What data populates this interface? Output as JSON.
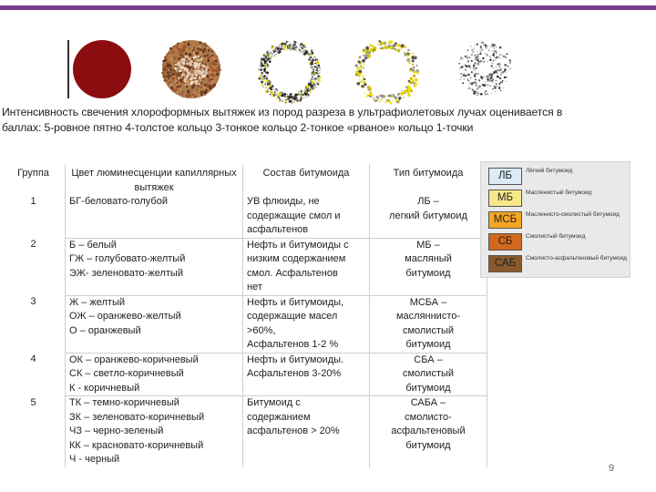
{
  "caption": {
    "line1": "Интенсивность свечения хлороформных вытяжек из пород разреза в ультрафиолетовых лучах оценивается в",
    "line2": "баллах: 5-ровное пятно   4-толстое кольцо   3-тонкое кольцо   2-тонкое «рваное» кольцо 1-точки"
  },
  "table": {
    "headers": [
      "Группа",
      "Цвет люминесценции капиллярных вытяжек",
      "Состав битумоида",
      "Тип битумоида"
    ],
    "rows": [
      {
        "group": "1",
        "color": "БГ-беловато-голубой",
        "composition": "УВ флюиды, не\nсодержащие смол и\nасфальтенов",
        "type": "ЛБ –\nлегкий битумоид"
      },
      {
        "group": "2",
        "color": "Б – белый\nГЖ – голубовато-желтый\nЭЖ- зеленовато-желтый",
        "composition": "Нефть и битумоиды с\nнизким содержанием\nсмол. Асфальтенов\nнет",
        "type": "МБ –\nмасляный\nбитумоид"
      },
      {
        "group": "3",
        "color": "Ж – желтый\nОЖ – оранжево-желтый\nО – оранжевый",
        "composition": "Нефть и битумоиды,\nсодержащие масел\n>60%,\nАсфальтенов 1-2 %",
        "type": "МСБА –\nмасляннисто-\nсмолистый\nбитумоид"
      },
      {
        "group": "4",
        "color": "ОК – оранжево-коричневый\nСК – светло-коричневый\nК - коричневый",
        "composition": "Нефть и битумоиды.\nАсфальтенов 3-20%",
        "type": "СБА –\nсмолистый\nбитумоид"
      },
      {
        "group": "5",
        "color": "ТК – темно-коричневый\nЗК – зеленовато-коричневый\nЧЗ – черно-зеленый\nКК – красновато-коричневый\nЧ - черный",
        "composition": "Битумоид с\nсодержанием\nасфальтенов > 20%",
        "type": "САБА –\nсмолисто-\nасфальтеновый\nбитумоид"
      }
    ]
  },
  "legend": {
    "items": [
      {
        "abbr": "ЛБ",
        "label": "Лёгкий битумоид",
        "color": "#d9ecf7"
      },
      {
        "abbr": "МБ",
        "label": "Масленистый битумоид",
        "color": "#f7e88a"
      },
      {
        "abbr": "МСБ",
        "label": "Масленисто-смолистый битумоид",
        "color": "#f5a623"
      },
      {
        "abbr": "СБ",
        "label": "Смолистый битумоид",
        "color": "#d2691e"
      },
      {
        "abbr": "САБ",
        "label": "Смолисто-асфальтеновый битумоид",
        "color": "#8b5a2b"
      }
    ]
  },
  "spots": [
    {
      "type": "solid-spot",
      "color": "#8b0d10"
    },
    {
      "type": "thick-ring",
      "color": "#8b5a2b"
    },
    {
      "type": "thin-ring",
      "color": "#2a2a2a"
    },
    {
      "type": "torn-ring",
      "color": "#e6d400"
    },
    {
      "type": "dots",
      "color": "#555555"
    }
  ],
  "page_number": "9"
}
